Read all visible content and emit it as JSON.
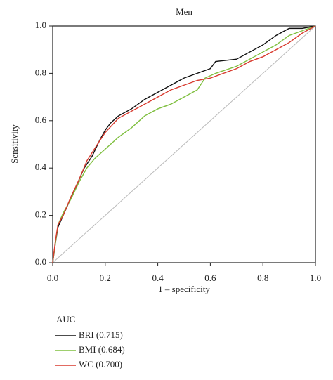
{
  "chart_data": {
    "type": "line",
    "title": "Men",
    "x_label": "1 – specificity",
    "y_label": "Sensitivity",
    "xlim": [
      0,
      1
    ],
    "ylim": [
      0,
      1
    ],
    "xticks": [
      {
        "value": 0,
        "label": "0.0"
      },
      0.2,
      0.4,
      0.6,
      0.8,
      {
        "value": 1,
        "label": "1.0"
      }
    ],
    "yticks": [
      {
        "value": 0,
        "label": "0.0"
      },
      0.2,
      0.4,
      0.6,
      0.8,
      {
        "value": 1,
        "label": "1.0"
      }
    ],
    "legend_title": "AUC",
    "series": [
      {
        "name": "BRI (0.715)",
        "color": "#111111",
        "x": [
          0,
          0.01,
          0.02,
          0.04,
          0.06,
          0.08,
          0.1,
          0.12,
          0.15,
          0.18,
          0.2,
          0.22,
          0.25,
          0.3,
          0.35,
          0.4,
          0.45,
          0.5,
          0.55,
          0.6,
          0.62,
          0.7,
          0.75,
          0.8,
          0.85,
          0.9,
          0.95,
          1
        ],
        "values": [
          0,
          0.08,
          0.15,
          0.2,
          0.25,
          0.3,
          0.35,
          0.4,
          0.45,
          0.52,
          0.56,
          0.59,
          0.62,
          0.65,
          0.69,
          0.72,
          0.75,
          0.78,
          0.8,
          0.82,
          0.85,
          0.86,
          0.89,
          0.92,
          0.96,
          0.99,
          0.99,
          1
        ]
      },
      {
        "name": "BMI (0.684)",
        "color": "#7fbf3f",
        "x": [
          0,
          0.01,
          0.02,
          0.04,
          0.07,
          0.1,
          0.13,
          0.16,
          0.2,
          0.25,
          0.3,
          0.35,
          0.4,
          0.45,
          0.5,
          0.55,
          0.58,
          0.62,
          0.7,
          0.75,
          0.8,
          0.85,
          0.9,
          0.95,
          1
        ],
        "values": [
          0,
          0.08,
          0.16,
          0.21,
          0.27,
          0.34,
          0.4,
          0.44,
          0.48,
          0.53,
          0.57,
          0.62,
          0.65,
          0.67,
          0.7,
          0.73,
          0.78,
          0.8,
          0.83,
          0.86,
          0.89,
          0.92,
          0.96,
          0.98,
          1
        ]
      },
      {
        "name": "WC (0.700)",
        "color": "#d83a2e",
        "x": [
          0,
          0.01,
          0.02,
          0.04,
          0.07,
          0.1,
          0.13,
          0.17,
          0.2,
          0.25,
          0.3,
          0.35,
          0.4,
          0.45,
          0.5,
          0.55,
          0.6,
          0.65,
          0.7,
          0.75,
          0.8,
          0.85,
          0.9,
          0.95,
          1
        ],
        "values": [
          0,
          0.09,
          0.16,
          0.2,
          0.28,
          0.35,
          0.43,
          0.5,
          0.55,
          0.61,
          0.64,
          0.67,
          0.7,
          0.73,
          0.75,
          0.77,
          0.78,
          0.8,
          0.82,
          0.85,
          0.87,
          0.9,
          0.93,
          0.97,
          1
        ]
      }
    ]
  }
}
